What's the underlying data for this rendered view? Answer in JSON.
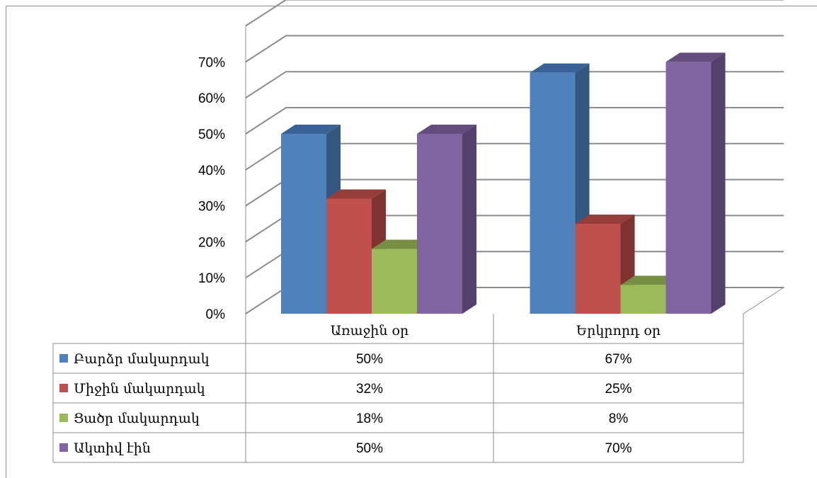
{
  "chart_data": {
    "type": "bar",
    "categories": [
      "Առաջին օր",
      "Երկրորդ օր"
    ],
    "series": [
      {
        "name": "Բարձր մակարդակ",
        "values": [
          50,
          67
        ],
        "labels": [
          "50%",
          "67%"
        ],
        "color": "#4f81bd",
        "side": "#35567f",
        "top": "#3a6296"
      },
      {
        "name": "Միջին մակարդակ",
        "values": [
          32,
          25
        ],
        "labels": [
          "32%",
          "25%"
        ],
        "color": "#c0504d",
        "side": "#7f3331",
        "top": "#963c3a"
      },
      {
        "name": "Ցածր մակարդակ",
        "values": [
          18,
          8
        ],
        "labels": [
          "18%",
          "8%"
        ],
        "color": "#9bbb59",
        "side": "#67803a",
        "top": "#768f44"
      },
      {
        "name": "Ակտիվ էին",
        "values": [
          50,
          70
        ],
        "labels": [
          "50%",
          "70%"
        ],
        "color": "#8064a2",
        "side": "#54406c",
        "top": "#634d7f"
      }
    ],
    "yticks": [
      "0%",
      "10%",
      "20%",
      "30%",
      "40%",
      "50%",
      "60%",
      "70%"
    ],
    "ylim": [
      0,
      70
    ],
    "grid": true,
    "legend": "data-table",
    "title": "",
    "xlabel": "",
    "ylabel": ""
  }
}
